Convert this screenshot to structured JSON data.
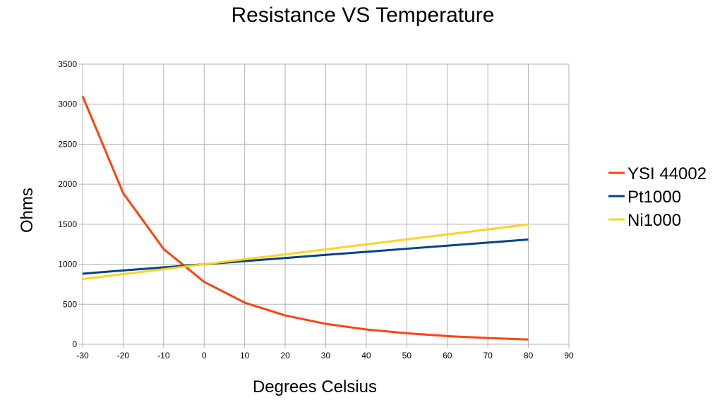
{
  "chart_data": {
    "type": "line",
    "title": "Resistance VS Temperature",
    "xlabel": "Degrees Celsius",
    "ylabel": "Ohms",
    "xlim": [
      -30,
      90
    ],
    "ylim": [
      0,
      3500
    ],
    "xticks": [
      -30,
      -20,
      -10,
      0,
      10,
      20,
      30,
      40,
      50,
      60,
      70,
      80,
      90
    ],
    "yticks": [
      0,
      500,
      1000,
      1500,
      2000,
      2500,
      3000,
      3500
    ],
    "grid": true,
    "legend_position": "right",
    "x": [
      -30,
      -20,
      -10,
      0,
      10,
      20,
      30,
      40,
      50,
      60,
      70,
      80
    ],
    "series": [
      {
        "name": "YSI 44002",
        "color": "#ff420e",
        "values": [
          3100,
          1890,
          1190,
          780,
          520,
          360,
          255,
          185,
          138,
          102,
          78,
          60
        ]
      },
      {
        "name": "Pt1000",
        "color": "#004586",
        "values": [
          882,
          922,
          961,
          1000,
          1039,
          1078,
          1117,
          1155,
          1194,
          1232,
          1271,
          1309
        ]
      },
      {
        "name": "Ni1000",
        "color": "#ffd320",
        "values": [
          815,
          877,
          938,
          1000,
          1062,
          1124,
          1186,
          1248,
          1311,
          1373,
          1436,
          1499
        ]
      }
    ]
  }
}
